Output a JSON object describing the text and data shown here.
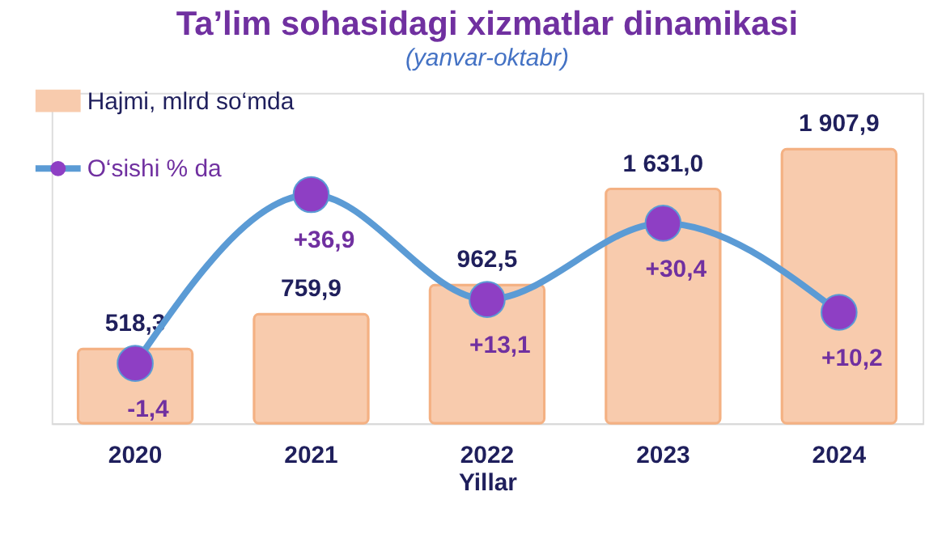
{
  "chart_data": {
    "type": "bar",
    "title": "Ta’lim sohasidagi xizmatlar dinamikasi",
    "subtitle": "(yanvar-oktabr)",
    "xlabel": "Yillar",
    "categories": [
      "2020",
      "2021",
      "2022",
      "2023",
      "2024"
    ],
    "series": [
      {
        "name": "Hajmi, mlrd so‘mda",
        "color": "#f8cbad",
        "values": [
          518.3,
          759.9,
          962.5,
          1631.0,
          1907.9
        ],
        "value_labels": [
          "518,3",
          "759,9",
          "962,5",
          "1 631,0",
          "1 907,9"
        ]
      },
      {
        "name": "O‘sishi  % da",
        "type": "line",
        "axis": "y2",
        "color": "#5b9bd5",
        "marker": "circle",
        "values": [
          -1.4,
          36.9,
          13.1,
          30.4,
          10.2
        ],
        "value_labels": [
          "-1,4",
          "+36,9",
          "+13,1",
          "+30,4",
          "+10,2"
        ]
      }
    ],
    "ylim": [
      0,
      2300
    ],
    "y2lim": [
      -15,
      60
    ],
    "tick_labels": "x",
    "legend": "top left"
  }
}
